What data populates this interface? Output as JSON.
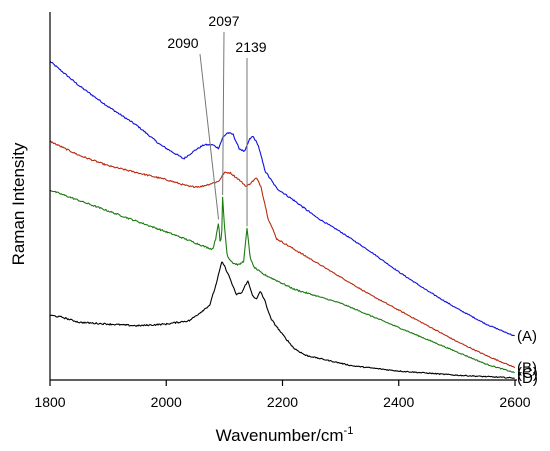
{
  "chart_data": {
    "type": "line",
    "title": "",
    "xlabel": "Wavenumber/cm",
    "xlabel_sup": "-1",
    "ylabel": "Raman Intensity",
    "xlim": [
      1800,
      2600
    ],
    "ylim": [
      0,
      100
    ],
    "xticks": [
      1800,
      2000,
      2200,
      2400,
      2600
    ],
    "grid": false,
    "yaxis_ticks_labeled": false,
    "series": [
      {
        "name": "(A)",
        "color": "#1010dd",
        "points": [
          [
            1800,
            91
          ],
          [
            1850,
            84
          ],
          [
            1900,
            78
          ],
          [
            1950,
            72.5
          ],
          [
            1990,
            67
          ],
          [
            2010,
            65
          ],
          [
            2030,
            63
          ],
          [
            2050,
            65.5
          ],
          [
            2065,
            67
          ],
          [
            2080,
            67
          ],
          [
            2090,
            66
          ],
          [
            2097,
            69
          ],
          [
            2105,
            70.5
          ],
          [
            2115,
            70
          ],
          [
            2125,
            66
          ],
          [
            2135,
            65
          ],
          [
            2143,
            68.5
          ],
          [
            2149,
            69.5
          ],
          [
            2158,
            67
          ],
          [
            2170,
            59.5
          ],
          [
            2190,
            54.5
          ],
          [
            2220,
            51
          ],
          [
            2260,
            46
          ],
          [
            2300,
            42
          ],
          [
            2350,
            36.5
          ],
          [
            2400,
            30.5
          ],
          [
            2450,
            25
          ],
          [
            2500,
            20
          ],
          [
            2550,
            15.5
          ],
          [
            2600,
            12
          ]
        ]
      },
      {
        "name": "(B)",
        "color": "#bb2a10",
        "points": [
          [
            1800,
            68
          ],
          [
            1850,
            64
          ],
          [
            1900,
            61
          ],
          [
            1950,
            59
          ],
          [
            2000,
            57
          ],
          [
            2040,
            55
          ],
          [
            2060,
            55
          ],
          [
            2080,
            56
          ],
          [
            2090,
            56.5
          ],
          [
            2100,
            59
          ],
          [
            2110,
            59
          ],
          [
            2125,
            57
          ],
          [
            2138,
            55
          ],
          [
            2145,
            56
          ],
          [
            2155,
            57.5
          ],
          [
            2163,
            55
          ],
          [
            2175,
            46
          ],
          [
            2190,
            40
          ],
          [
            2220,
            37
          ],
          [
            2260,
            33
          ],
          [
            2300,
            29
          ],
          [
            2350,
            24
          ],
          [
            2400,
            19.5
          ],
          [
            2450,
            15
          ],
          [
            2500,
            10.5
          ],
          [
            2550,
            6.5
          ],
          [
            2600,
            3
          ]
        ]
      },
      {
        "name": "(C)",
        "color": "#1a7a10",
        "points": [
          [
            1800,
            54
          ],
          [
            1850,
            51
          ],
          [
            1900,
            48
          ],
          [
            1950,
            45
          ],
          [
            2000,
            42
          ],
          [
            2040,
            39.5
          ],
          [
            2070,
            37.5
          ],
          [
            2080,
            37
          ],
          [
            2085,
            40
          ],
          [
            2090,
            45
          ],
          [
            2093,
            38
          ],
          [
            2096,
            43
          ],
          [
            2097,
            52
          ],
          [
            2100,
            44
          ],
          [
            2105,
            35
          ],
          [
            2115,
            33
          ],
          [
            2125,
            32.5
          ],
          [
            2133,
            33.5
          ],
          [
            2139,
            43
          ],
          [
            2144,
            35
          ],
          [
            2150,
            32
          ],
          [
            2165,
            30
          ],
          [
            2190,
            28
          ],
          [
            2220,
            25.5
          ],
          [
            2260,
            23.5
          ],
          [
            2300,
            21.5
          ],
          [
            2350,
            18
          ],
          [
            2400,
            14.5
          ],
          [
            2450,
            11
          ],
          [
            2500,
            7.5
          ],
          [
            2550,
            4
          ],
          [
            2600,
            1.5
          ]
        ]
      },
      {
        "name": "(D)",
        "color": "#000000",
        "points": [
          [
            1800,
            18
          ],
          [
            1820,
            17.5
          ],
          [
            1850,
            16
          ],
          [
            1900,
            15.5
          ],
          [
            1950,
            15
          ],
          [
            2000,
            15.5
          ],
          [
            2040,
            16.5
          ],
          [
            2060,
            19
          ],
          [
            2075,
            21
          ],
          [
            2085,
            26.5
          ],
          [
            2092,
            31
          ],
          [
            2096,
            33.5
          ],
          [
            2102,
            31.5
          ],
          [
            2110,
            28.5
          ],
          [
            2120,
            24
          ],
          [
            2130,
            24.5
          ],
          [
            2140,
            28
          ],
          [
            2148,
            24
          ],
          [
            2155,
            22.5
          ],
          [
            2162,
            25
          ],
          [
            2170,
            22
          ],
          [
            2180,
            17
          ],
          [
            2200,
            12.5
          ],
          [
            2220,
            8.5
          ],
          [
            2240,
            6.5
          ],
          [
            2280,
            5
          ],
          [
            2320,
            3.5
          ],
          [
            2400,
            2
          ],
          [
            2500,
            0.8
          ],
          [
            2600,
            0
          ]
        ]
      }
    ],
    "annotations": [
      {
        "text": "2090",
        "x": 2090,
        "series": "(C)"
      },
      {
        "text": "2097",
        "x": 2097,
        "series": "(C)"
      },
      {
        "text": "2139",
        "x": 2139,
        "series": "(C)"
      }
    ]
  }
}
